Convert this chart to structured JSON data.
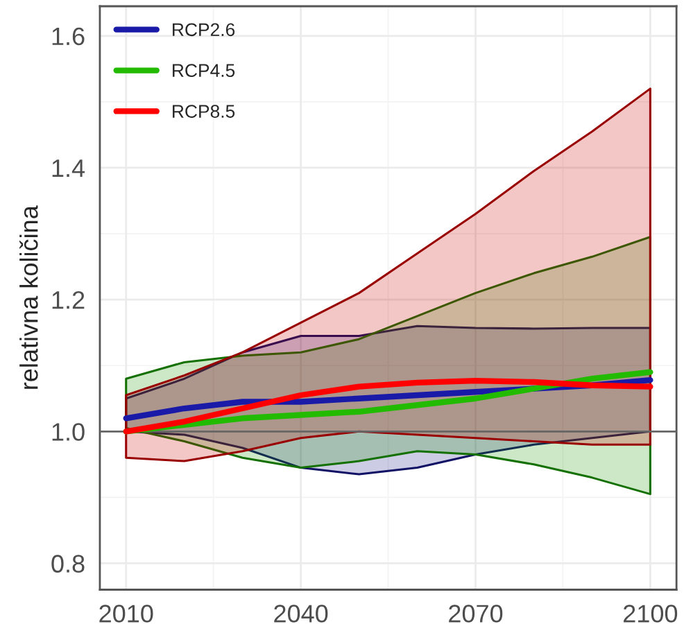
{
  "chart_data": {
    "type": "line",
    "ylabel": "relativna količina",
    "x": [
      2010,
      2020,
      2030,
      2040,
      2050,
      2060,
      2070,
      2080,
      2090,
      2100
    ],
    "series": [
      {
        "name": "RCP2.6",
        "color": "#1a1aa8",
        "values": [
          1.02,
          1.035,
          1.045,
          1.045,
          1.05,
          1.055,
          1.06,
          1.065,
          1.07,
          1.078
        ],
        "lower": [
          1.0,
          0.995,
          0.975,
          0.945,
          0.935,
          0.945,
          0.965,
          0.98,
          0.99,
          1.0
        ],
        "upper": [
          1.05,
          1.08,
          1.12,
          1.145,
          1.145,
          1.16,
          1.157,
          1.156,
          1.157,
          1.157
        ]
      },
      {
        "name": "RCP4.5",
        "color": "#22bb00",
        "values": [
          1.0,
          1.01,
          1.02,
          1.025,
          1.03,
          1.04,
          1.05,
          1.065,
          1.08,
          1.09
        ],
        "lower": [
          1.005,
          0.985,
          0.96,
          0.945,
          0.955,
          0.97,
          0.965,
          0.95,
          0.93,
          0.905
        ],
        "upper": [
          1.08,
          1.105,
          1.115,
          1.12,
          1.14,
          1.175,
          1.21,
          1.24,
          1.265,
          1.295
        ]
      },
      {
        "name": "RCP8.5",
        "color": "#ff0000",
        "values": [
          1.0,
          1.015,
          1.035,
          1.055,
          1.068,
          1.074,
          1.077,
          1.075,
          1.07,
          1.068
        ],
        "lower": [
          0.96,
          0.955,
          0.97,
          0.99,
          1.0,
          0.995,
          0.99,
          0.985,
          0.98,
          0.98
        ],
        "upper": [
          1.055,
          1.085,
          1.12,
          1.165,
          1.21,
          1.27,
          1.33,
          1.395,
          1.455,
          1.52
        ]
      }
    ],
    "ref_lines": [
      {
        "axis": "y",
        "value": 1.0,
        "label": null,
        "color": "#666666"
      }
    ],
    "xlim": [
      2005.5,
      2104.5
    ],
    "ylim": [
      0.76,
      1.645
    ],
    "xticks": [
      2010,
      2040,
      2070,
      2100
    ],
    "yticks": [
      0.8,
      {
        "value": 1.0,
        "label": "1.0"
      },
      1.2,
      1.4,
      1.6
    ],
    "grid": true,
    "legend": "top left",
    "line_style": "solid",
    "marker": "none"
  }
}
